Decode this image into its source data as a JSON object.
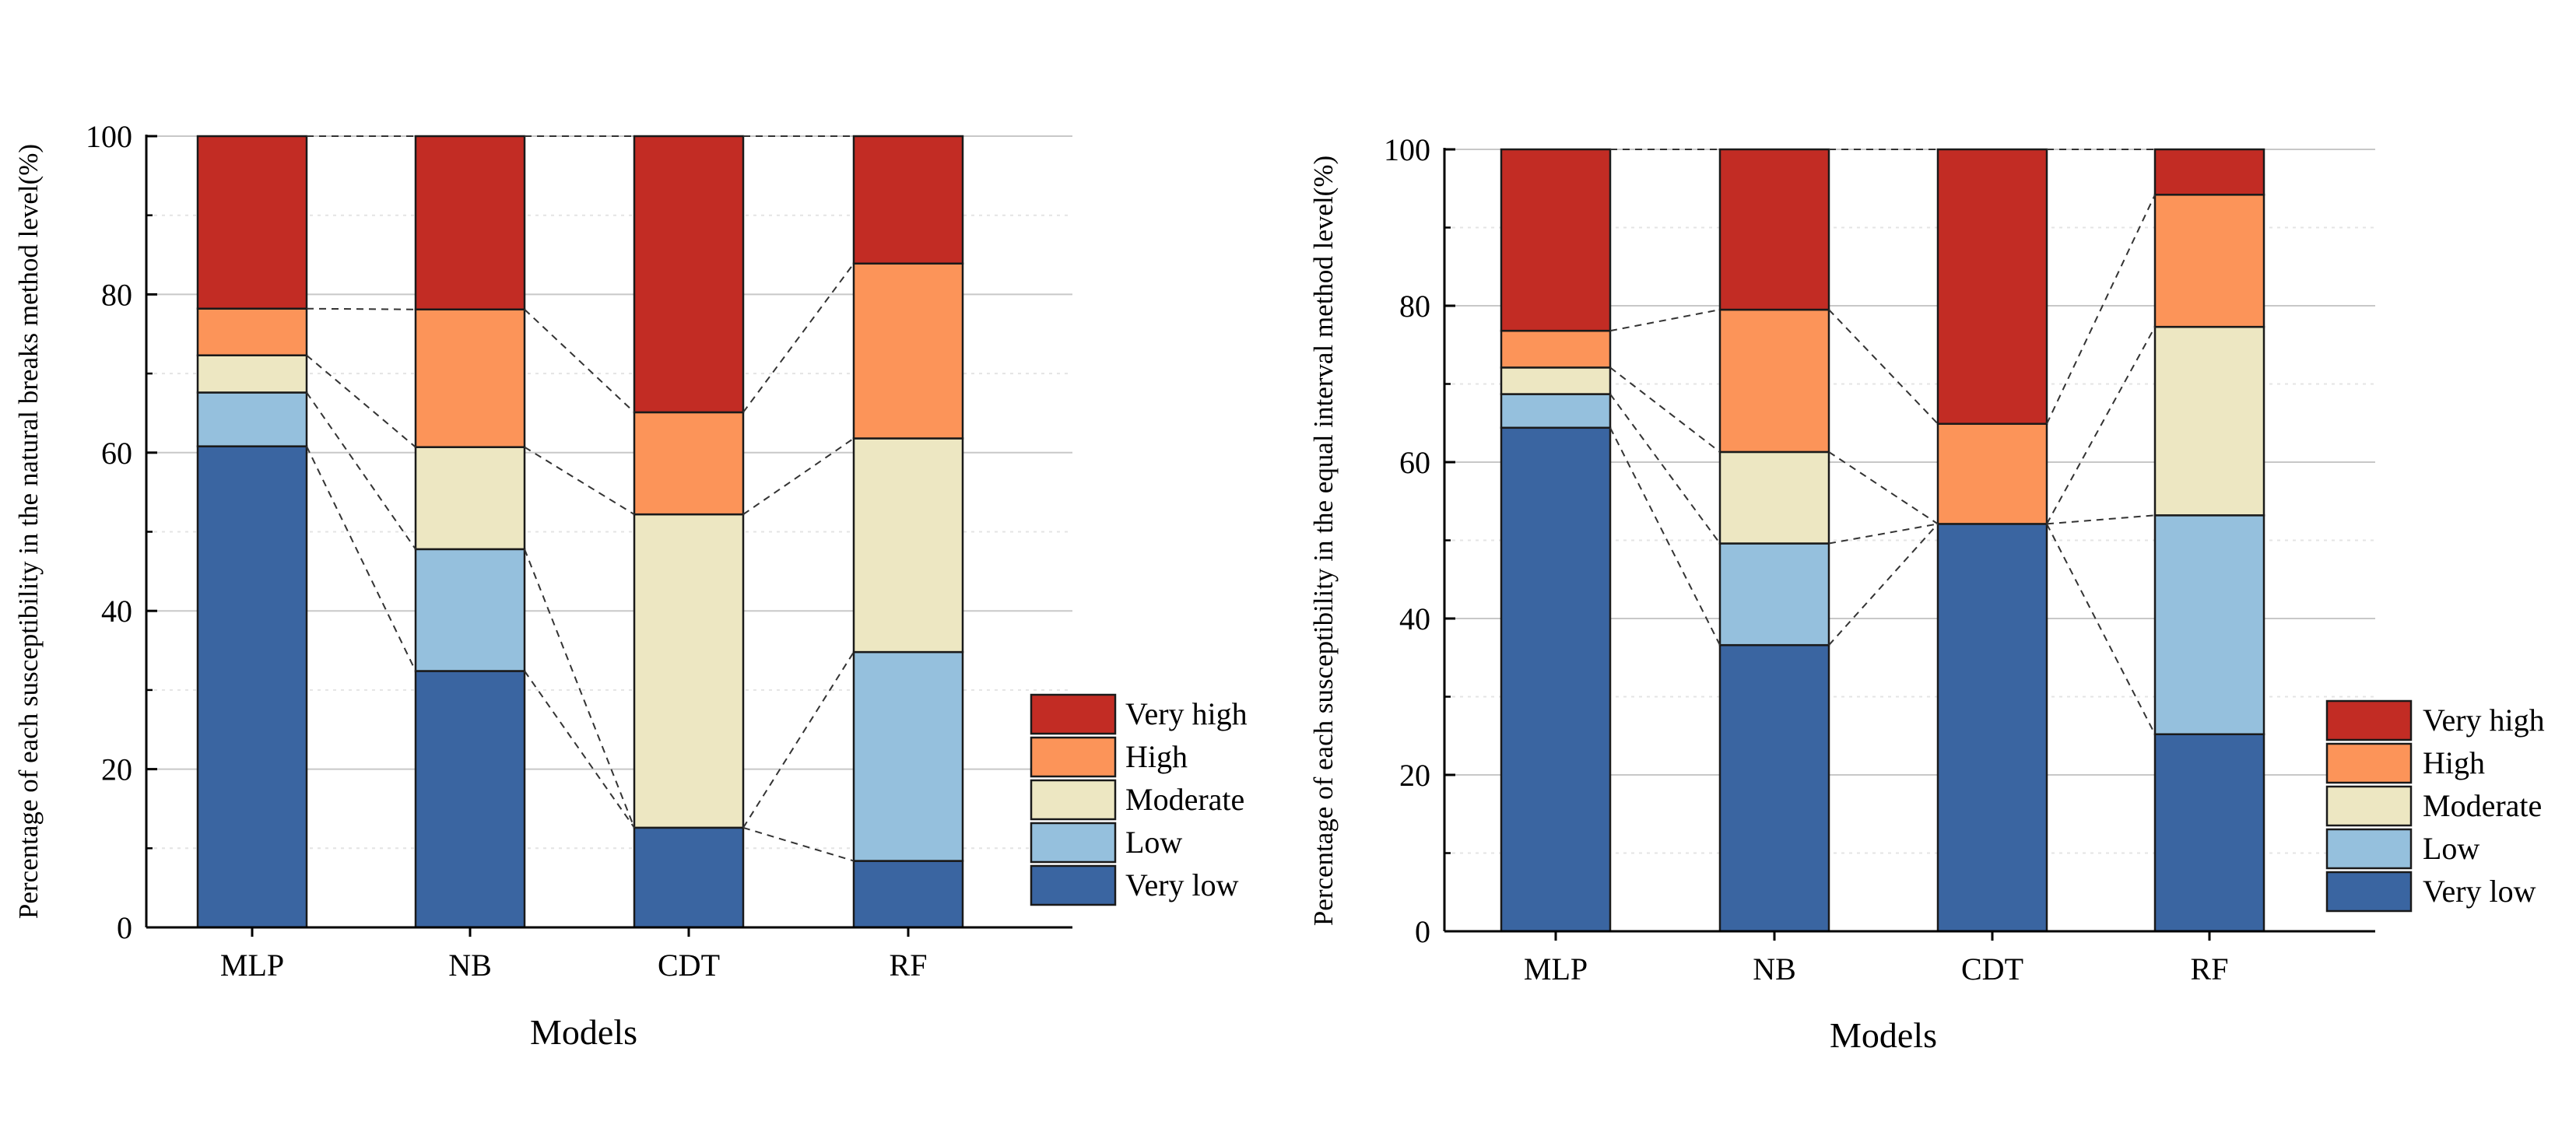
{
  "legend_colors": {
    "Very high": "#c22c24",
    "High": "#fc9459",
    "Moderate": "#ede7c2",
    "Low": "#95c0dd",
    "Very low": "#3a65a1"
  },
  "chart_data": [
    {
      "type": "stacked-bar",
      "title": "",
      "xlabel": "Models",
      "ylabel": "Percentage of each susceptibility in the natural breaks method level(%)",
      "ylim": [
        0,
        100
      ],
      "yticks": [
        "0",
        "20",
        "40",
        "60",
        "80",
        "100"
      ],
      "categories": [
        "MLP",
        "NB",
        "CDT",
        "RF"
      ],
      "grid": true,
      "legend_position": "bottom-right",
      "legend_order": [
        "Very high",
        "High",
        "Moderate",
        "Low",
        "Very low"
      ],
      "series": [
        {
          "name": "Very low",
          "values": [
            60.8,
            32.4,
            12.6,
            8.4
          ]
        },
        {
          "name": "Low",
          "values": [
            6.8,
            15.4,
            0.0,
            26.4
          ]
        },
        {
          "name": "Moderate",
          "values": [
            4.7,
            12.9,
            39.6,
            27.0
          ]
        },
        {
          "name": "High",
          "values": [
            5.9,
            17.4,
            12.9,
            22.1
          ]
        },
        {
          "name": "Very high",
          "values": [
            21.8,
            21.9,
            34.9,
            16.1
          ]
        }
      ]
    },
    {
      "type": "stacked-bar",
      "title": "",
      "xlabel": "Models",
      "ylabel": "Percentage of each susceptibility in the equal interval method level(%)",
      "ylim": [
        0,
        100
      ],
      "yticks": [
        "0",
        "20",
        "40",
        "60",
        "80",
        "100"
      ],
      "categories": [
        "MLP",
        "NB",
        "CDT",
        "RF"
      ],
      "grid": true,
      "legend_position": "bottom-right",
      "legend_order": [
        "Very high",
        "High",
        "Moderate",
        "Low",
        "Very low"
      ],
      "series": [
        {
          "name": "Very low",
          "values": [
            64.4,
            36.6,
            52.1,
            25.2
          ]
        },
        {
          "name": "Low",
          "values": [
            4.3,
            13.0,
            0.0,
            28.0
          ]
        },
        {
          "name": "Moderate",
          "values": [
            3.4,
            11.7,
            0.0,
            24.1
          ]
        },
        {
          "name": "High",
          "values": [
            4.7,
            18.2,
            12.8,
            16.9
          ]
        },
        {
          "name": "Very high",
          "values": [
            23.2,
            20.5,
            35.1,
            5.8
          ]
        }
      ]
    }
  ]
}
